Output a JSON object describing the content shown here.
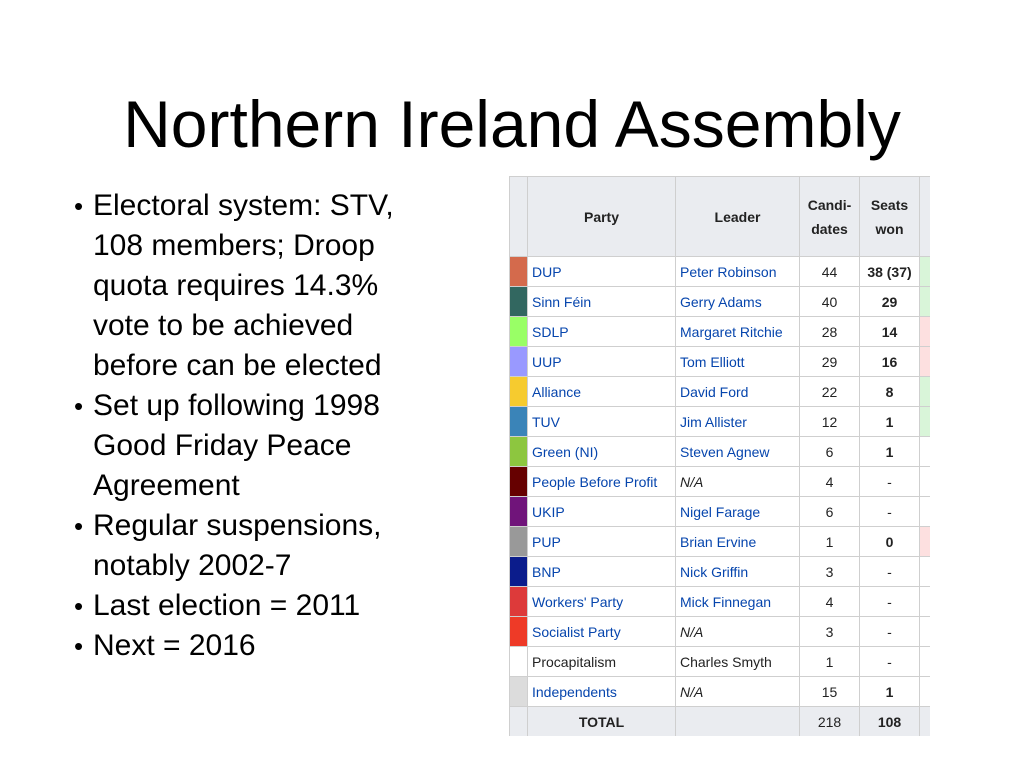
{
  "slide": {
    "title": "Northern Ireland Assembly",
    "bullets": [
      "Electoral system: STV, 108 members; Droop quota requires 14.3% vote to be achieved before can be elected",
      "Set up following 1998 Good Friday Peace Agreement",
      "Regular suspensions, notably 2002-7",
      "Last election = 2011",
      "Next = 2016"
    ]
  },
  "table": {
    "headers": {
      "party": "Party",
      "leader": "Leader",
      "candidates_line1": "Candi-",
      "candidates_line2": "dates",
      "seats_line1": "Seats",
      "seats_line2": "won"
    },
    "rows": [
      {
        "color": "#d46a4c",
        "party": "DUP",
        "leader": "Peter Robinson",
        "candidates": "44",
        "seats": "38 (37)",
        "trend": "#d9f5d9"
      },
      {
        "color": "#326760",
        "party": "Sinn Féin",
        "leader": "Gerry Adams",
        "candidates": "40",
        "seats": "29",
        "trend": "#d9f5d9"
      },
      {
        "color": "#99ff66",
        "party": "SDLP",
        "leader": "Margaret Ritchie",
        "candidates": "28",
        "seats": "14",
        "trend": "#fde0e0"
      },
      {
        "color": "#9999ff",
        "party": "UUP",
        "leader": "Tom Elliott",
        "candidates": "29",
        "seats": "16",
        "trend": "#fde0e0"
      },
      {
        "color": "#f6cb2f",
        "party": "Alliance",
        "leader": "David Ford",
        "candidates": "22",
        "seats": "8",
        "trend": "#d9f5d9"
      },
      {
        "color": "#3a84b8",
        "party": "TUV",
        "leader": "Jim Allister",
        "candidates": "12",
        "seats": "1",
        "trend": "#d9f5d9"
      },
      {
        "color": "#8dc63f",
        "party": "Green (NI)",
        "leader": "Steven Agnew",
        "candidates": "6",
        "seats": "1",
        "trend": "#ffffff"
      },
      {
        "color": "#660000",
        "party": "People Before Profit",
        "leader": "N/A",
        "candidates": "4",
        "seats": "-",
        "trend": "#ffffff"
      },
      {
        "color": "#70147a",
        "party": "UKIP",
        "leader": "Nigel Farage",
        "candidates": "6",
        "seats": "-",
        "trend": "#ffffff"
      },
      {
        "color": "#999999",
        "party": "PUP",
        "leader": "Brian Ervine",
        "candidates": "1",
        "seats": "0",
        "trend": "#fde0e0"
      },
      {
        "color": "#0b1c8c",
        "party": "BNP",
        "leader": "Nick Griffin",
        "candidates": "3",
        "seats": "-",
        "trend": "#ffffff"
      },
      {
        "color": "#dd3a3a",
        "party": "Workers' Party",
        "leader": "Mick Finnegan",
        "candidates": "4",
        "seats": "-",
        "trend": "#ffffff"
      },
      {
        "color": "#ee3a27",
        "party": "Socialist Party",
        "leader": "N/A",
        "candidates": "3",
        "seats": "-",
        "trend": "#ffffff"
      },
      {
        "color": "#ffffff",
        "party": "Procapitalism",
        "leader": "Charles Smyth",
        "candidates": "1",
        "seats": "-",
        "trend": "#ffffff",
        "plain": true
      },
      {
        "color": "#dcdcdc",
        "party": "Independents",
        "leader": "N/A",
        "candidates": "15",
        "seats": "1",
        "trend": "#ffffff"
      }
    ],
    "total": {
      "label": "TOTAL",
      "candidates": "218",
      "seats": "108"
    }
  }
}
